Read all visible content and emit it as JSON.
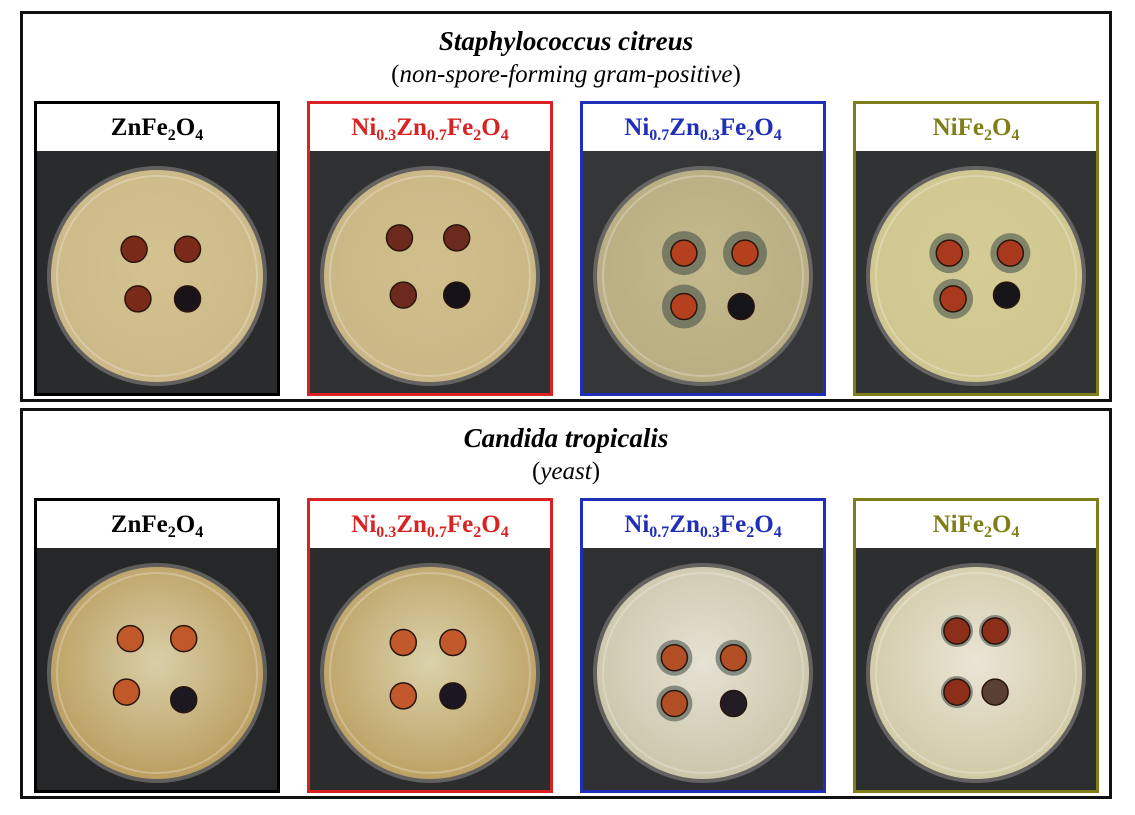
{
  "sections": [
    {
      "title": "Staphylococcus citreus",
      "subtitle_open": "(",
      "subtitle_text": "non-spore-forming gram-positive",
      "subtitle_close": ")",
      "panels": [
        {
          "color": "#000000",
          "parts": [
            {
              "t": "Zn",
              "s": ""
            },
            {
              "t": "Fe",
              "s": "2"
            },
            {
              "t": "O",
              "s": "4"
            }
          ]
        },
        {
          "color": "#d92323",
          "parts": [
            {
              "t": "Ni",
              "s": "0.3"
            },
            {
              "t": "Zn",
              "s": "0.7"
            },
            {
              "t": "Fe",
              "s": "2"
            },
            {
              "t": "O",
              "s": "4"
            }
          ]
        },
        {
          "color": "#1f2fb8",
          "parts": [
            {
              "t": "Ni",
              "s": "0.7"
            },
            {
              "t": "Zn",
              "s": "0.3"
            },
            {
              "t": "Fe",
              "s": "2"
            },
            {
              "t": "O",
              "s": "4"
            }
          ]
        },
        {
          "color": "#7f7f1a",
          "parts": [
            {
              "t": "Ni",
              "s": ""
            },
            {
              "t": "Fe",
              "s": "2"
            },
            {
              "t": "O",
              "s": "4"
            }
          ]
        }
      ]
    },
    {
      "title": "Candida tropicalis",
      "subtitle_open": "(",
      "subtitle_text": "yeast",
      "subtitle_close": ")",
      "panels": [
        {
          "color": "#000000",
          "parts": [
            {
              "t": "Zn",
              "s": ""
            },
            {
              "t": "Fe",
              "s": "2"
            },
            {
              "t": "O",
              "s": "4"
            }
          ]
        },
        {
          "color": "#d92323",
          "parts": [
            {
              "t": "Ni",
              "s": "0.3"
            },
            {
              "t": "Zn",
              "s": "0.7"
            },
            {
              "t": "Fe",
              "s": "2"
            },
            {
              "t": "O",
              "s": "4"
            }
          ]
        },
        {
          "color": "#1f2fb8",
          "parts": [
            {
              "t": "Ni",
              "s": "0.7"
            },
            {
              "t": "Zn",
              "s": "0.3"
            },
            {
              "t": "Fe",
              "s": "2"
            },
            {
              "t": "O",
              "s": "4"
            }
          ]
        },
        {
          "color": "#7f7f1a",
          "parts": [
            {
              "t": "Ni",
              "s": ""
            },
            {
              "t": "Fe",
              "s": "2"
            },
            {
              "t": "O",
              "s": "4"
            }
          ]
        }
      ]
    }
  ]
}
